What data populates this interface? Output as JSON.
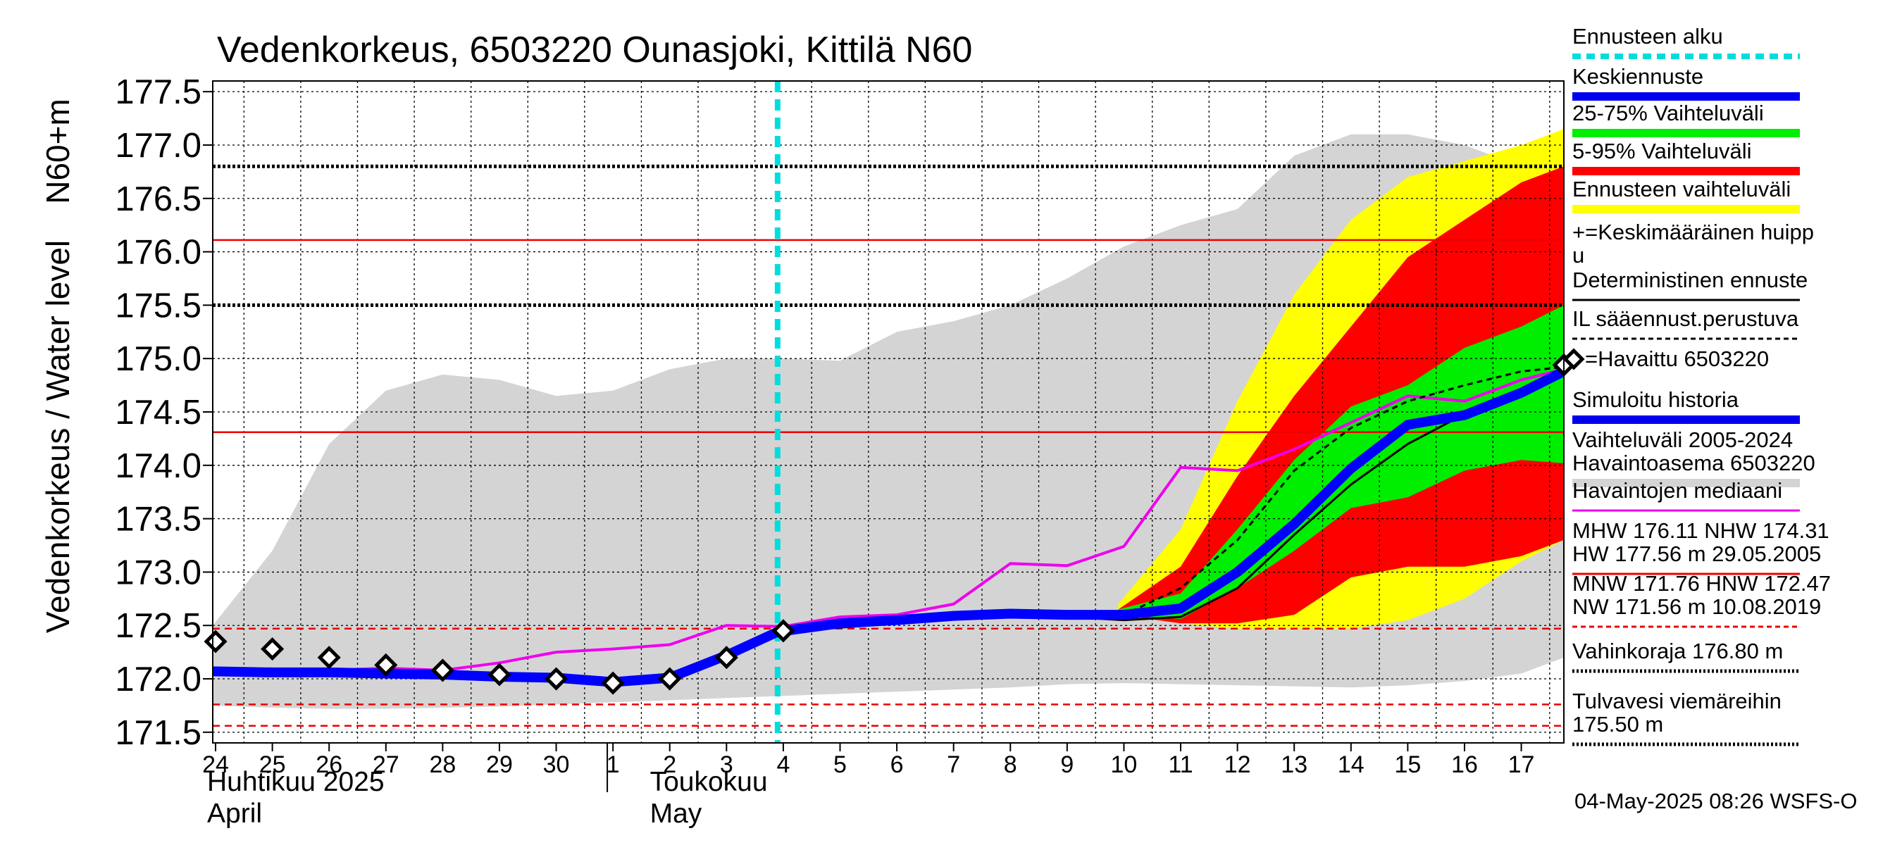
{
  "chart_data": {
    "type": "area",
    "title": "Vedenkorkeus, 6503220 Ounasjoki, Kittilä N60",
    "ylabel": "Vedenkorkeus / Water level",
    "ylabel2": "N60+m",
    "ylim": [
      171.4,
      177.6
    ],
    "yticks": [
      171.5,
      172.0,
      172.5,
      173.0,
      173.5,
      174.0,
      174.5,
      175.0,
      175.5,
      176.0,
      176.5,
      177.0,
      177.5
    ],
    "ytick_labels": [
      "171.5",
      "172.0",
      "172.5",
      "173.0",
      "173.5",
      "174.0",
      "174.5",
      "175.0",
      "175.5",
      "176.0",
      "176.5",
      "177.0",
      "177.5"
    ],
    "xlim": [
      -0.05,
      23.75
    ],
    "x_day_labels": [
      "24",
      "25",
      "26",
      "27",
      "28",
      "29",
      "30",
      "1",
      "2",
      "3",
      "4",
      "5",
      "6",
      "7",
      "8",
      "9",
      "10",
      "11",
      "12",
      "13",
      "14",
      "15",
      "16",
      "17"
    ],
    "month_labels": [
      {
        "line1": "Huhtikuu  2025",
        "line2": "April",
        "x": 0
      },
      {
        "line1": "Toukokuu",
        "line2": "May",
        "x": 7.8
      }
    ],
    "month_separator_x": 6.9,
    "forecast_start_x": 9.9,
    "reference_lines": [
      {
        "name": "Vahinkoraja",
        "value": 176.8,
        "style": "dotted",
        "color": "#000000"
      },
      {
        "name": "Tulvavesi viemäreihin",
        "value": 175.5,
        "style": "dotted",
        "color": "#000000"
      },
      {
        "name": "MHW",
        "value": 176.11,
        "style": "solid",
        "color": "#ee0000"
      },
      {
        "name": "NHW",
        "value": 174.31,
        "style": "solid",
        "color": "#ee0000"
      },
      {
        "name": "HNW",
        "value": 172.47,
        "style": "dashed",
        "color": "#ee0000"
      },
      {
        "name": "MNW",
        "value": 171.76,
        "style": "dashed",
        "color": "#ee0000"
      },
      {
        "name": "NW",
        "value": 171.56,
        "style": "dashed",
        "color": "#ee0000"
      }
    ],
    "series": [
      {
        "name": "Vaihteluväli 2005-2024 Havaintoasema 6503220",
        "kind": "band",
        "color": "#d4d4d4",
        "x": [
          -0.05,
          1,
          2,
          3,
          4,
          5,
          6,
          7,
          8,
          9,
          10,
          11,
          12,
          13,
          14,
          15,
          16,
          17,
          18,
          19,
          20,
          21,
          22,
          23,
          23.75
        ],
        "upper": [
          172.5,
          173.2,
          174.2,
          174.7,
          174.85,
          174.8,
          174.65,
          174.7,
          174.9,
          175.0,
          175.0,
          174.98,
          175.25,
          175.35,
          175.5,
          175.75,
          176.05,
          176.25,
          176.4,
          176.9,
          177.1,
          177.1,
          177.0,
          176.8,
          176.6
        ],
        "lower": [
          171.75,
          171.73,
          171.72,
          171.72,
          171.73,
          171.74,
          171.76,
          171.78,
          171.8,
          171.82,
          171.84,
          171.86,
          171.88,
          171.9,
          171.92,
          171.95,
          171.96,
          171.95,
          171.94,
          171.93,
          171.92,
          171.94,
          171.98,
          172.05,
          172.2
        ]
      },
      {
        "name": "Ennusteen vaihteluväli",
        "kind": "band",
        "color": "#ffff00",
        "x": [
          15.9,
          17,
          18,
          19,
          20,
          21,
          22,
          23,
          23.75
        ],
        "upper": [
          172.7,
          173.4,
          174.6,
          175.6,
          176.3,
          176.7,
          176.85,
          177.0,
          177.15
        ],
        "lower": [
          172.6,
          172.52,
          172.47,
          172.47,
          172.47,
          172.55,
          172.75,
          173.1,
          173.3
        ]
      },
      {
        "name": "5-95% Vaihteluväli",
        "kind": "band",
        "color": "#ff0000",
        "x": [
          15.9,
          17,
          18,
          19,
          20,
          21,
          22,
          23,
          23.75
        ],
        "upper": [
          172.65,
          173.05,
          173.9,
          174.65,
          175.3,
          175.95,
          176.3,
          176.65,
          176.8
        ],
        "lower": [
          172.6,
          172.52,
          172.52,
          172.6,
          172.95,
          173.05,
          173.05,
          173.15,
          173.3
        ]
      },
      {
        "name": "25-75% Vaihteluväli",
        "kind": "band",
        "color": "#00ee00",
        "x": [
          15.9,
          17,
          18,
          19,
          20,
          21,
          22,
          23,
          23.75
        ],
        "upper": [
          172.65,
          172.8,
          173.4,
          174.05,
          174.55,
          174.75,
          175.1,
          175.3,
          175.5
        ],
        "lower": [
          172.6,
          172.56,
          172.85,
          173.2,
          173.6,
          173.7,
          173.95,
          174.05,
          174.02
        ]
      },
      {
        "name": "Havaintojen mediaani",
        "kind": "line",
        "color": "#ee00ee",
        "width": 4,
        "x": [
          0,
          1,
          2,
          3,
          4,
          5,
          6,
          7,
          8,
          9,
          10,
          11,
          12,
          13,
          14,
          15,
          16,
          17,
          18,
          19,
          20,
          21,
          22,
          23,
          23.75
        ],
        "values": [
          172.1,
          172.09,
          172.08,
          172.1,
          172.08,
          172.15,
          172.25,
          172.28,
          172.32,
          172.5,
          172.49,
          172.58,
          172.6,
          172.7,
          173.08,
          173.06,
          173.24,
          173.98,
          173.95,
          174.15,
          174.4,
          174.65,
          174.6,
          174.8,
          174.9
        ]
      },
      {
        "name": "IL sääennust.perustuva",
        "kind": "line",
        "color": "#000000",
        "width": 3,
        "dash": "8,6",
        "x": [
          9.9,
          11,
          12,
          13,
          14,
          15,
          16,
          17,
          18,
          19,
          20,
          21,
          22,
          23,
          23.75
        ],
        "values": [
          172.45,
          172.5,
          172.53,
          172.58,
          172.6,
          172.6,
          172.6,
          172.85,
          173.3,
          173.95,
          174.35,
          174.6,
          174.75,
          174.88,
          174.92
        ]
      },
      {
        "name": "Deterministinen ennuste",
        "kind": "line",
        "color": "#000000",
        "width": 3,
        "x": [
          9.9,
          11,
          12,
          13,
          14,
          15,
          16,
          17,
          18,
          19,
          20,
          21,
          22,
          23,
          23.75
        ],
        "values": [
          172.44,
          172.48,
          172.52,
          172.58,
          172.6,
          172.58,
          172.55,
          172.58,
          172.85,
          173.35,
          173.82,
          174.2,
          174.48,
          174.7,
          174.88
        ]
      },
      {
        "name": "Simuloitu historia",
        "kind": "line",
        "color": "#0000ff",
        "width": 14,
        "x": [
          -0.05,
          1,
          2,
          3,
          4,
          5,
          6,
          7,
          8,
          9,
          9.9
        ],
        "values": [
          172.07,
          172.06,
          172.06,
          172.05,
          172.04,
          172.02,
          172.01,
          171.97,
          172.01,
          172.22,
          172.44
        ]
      },
      {
        "name": "Keskiennuste",
        "kind": "line",
        "color": "#0000ff",
        "width": 14,
        "x": [
          9.9,
          11,
          12,
          13,
          14,
          15,
          16,
          17,
          18,
          19,
          20,
          21,
          22,
          23,
          23.75
        ],
        "values": [
          172.44,
          172.52,
          172.55,
          172.59,
          172.61,
          172.6,
          172.6,
          172.66,
          173.0,
          173.45,
          173.97,
          174.38,
          174.47,
          174.68,
          174.88
        ]
      },
      {
        "name": "Havaittu 6503220",
        "kind": "scatter",
        "color": "#000000",
        "marker": "diamond",
        "x": [
          0,
          1,
          2,
          3,
          4,
          5,
          6,
          7,
          8,
          9,
          10,
          23.75
        ],
        "values": [
          172.35,
          172.28,
          172.2,
          172.13,
          172.08,
          172.04,
          172.0,
          171.96,
          172.0,
          172.2,
          172.45,
          174.94
        ]
      }
    ],
    "legend": [
      {
        "label": "Ennusteen alku",
        "style": "dashed",
        "color": "#00dddd"
      },
      {
        "label": "Keskiennuste",
        "style": "thick",
        "color": "#0000ee"
      },
      {
        "label": "25-75% Vaihteluväli",
        "style": "thick",
        "color": "#00ee00"
      },
      {
        "label": "5-95% Vaihteluväli",
        "style": "thick",
        "color": "#ff0000"
      },
      {
        "label": "Ennusteen vaihteluväli",
        "style": "thick",
        "color": "#ffff00"
      },
      {
        "label": "+=Keskimääräinen huipp\nu",
        "style": "none",
        "color": "#000000"
      },
      {
        "label": "Deterministinen ennuste",
        "style": "solid",
        "color": "#000000"
      },
      {
        "label": "IL sääennust.perustuva",
        "style": "dashed",
        "color": "#000000"
      },
      {
        "label": "=Havaittu 6503220",
        "style": "diamond",
        "color": "#000000"
      },
      {
        "label": "Simuloitu historia",
        "style": "thick",
        "color": "#0000ee"
      },
      {
        "label": "Vaihteluväli 2005-2024\n Havaintoasema 6503220",
        "style": "thick",
        "color": "#d4d4d4"
      },
      {
        "label": "Havaintojen mediaani",
        "style": "solid",
        "color": "#ee00ee"
      },
      {
        "label": "MHW 176.11 NHW 174.31\nHW 177.56 m 29.05.2005",
        "style": "solid",
        "color": "#ee0000"
      },
      {
        "label": "MNW 171.76 HNW 172.47\nNW 171.56 m 10.08.2019",
        "style": "dashed",
        "color": "#ee0000"
      },
      {
        "label": "Vahinkoraja 176.80 m",
        "style": "dotted",
        "color": "#000000"
      },
      {
        "label": "Tulvavesi viemäreihin\n 175.50 m",
        "style": "dotted",
        "color": "#000000"
      }
    ],
    "footer": "04-May-2025 08:26 WSFS-O"
  }
}
